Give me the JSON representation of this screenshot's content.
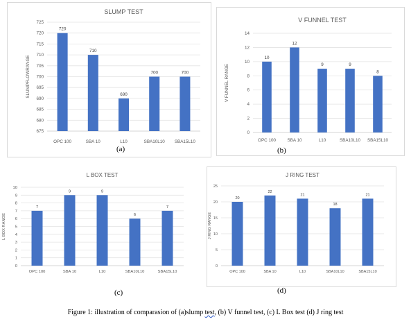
{
  "charts": [
    {
      "type": "bar",
      "title": "SLUMP TEST",
      "ylabel": "SLUMPFLOWRANGE",
      "xlabel": "",
      "categories": [
        "OPC 100",
        "SBA 10",
        "L10",
        "SBA10L10",
        "SBA15L10"
      ],
      "values": [
        720,
        710,
        690,
        700,
        700
      ],
      "ylim": [
        675,
        725
      ],
      "yticks": [
        675,
        680,
        685,
        690,
        695,
        700,
        705,
        710,
        715,
        720,
        725
      ],
      "grid": true,
      "color": "#4472c4",
      "caption": "(a)"
    },
    {
      "type": "bar",
      "title": "V FUNNEL TEST",
      "ylabel": "V FUNNEL RANGE",
      "xlabel": "",
      "categories": [
        "OPC 100",
        "SBA 10",
        "L10",
        "SBA10L10",
        "SBA15L10"
      ],
      "values": [
        10,
        12,
        9,
        9,
        8
      ],
      "ylim": [
        0,
        14
      ],
      "yticks": [
        0,
        2,
        4,
        6,
        8,
        10,
        12,
        14
      ],
      "grid": true,
      "color": "#4472c4",
      "caption": "(b)"
    },
    {
      "type": "bar",
      "title": "L BOX TEST",
      "ylabel": "L BOX RANGE",
      "xlabel": "",
      "categories": [
        "OPC 100",
        "SBA 10",
        "L10",
        "SBA10L10",
        "SBA15L10"
      ],
      "values": [
        7,
        9,
        9,
        6,
        7
      ],
      "ylim": [
        0,
        10
      ],
      "yticks": [
        0,
        1,
        2,
        3,
        4,
        5,
        6,
        7,
        8,
        9,
        10
      ],
      "grid": true,
      "color": "#4472c4",
      "caption": "(c)"
    },
    {
      "type": "bar",
      "title": "J RING TEST",
      "ylabel": "J RING RANGE",
      "xlabel": "",
      "categories": [
        "OPC 100",
        "SBA 10",
        "L10",
        "SBA10L10",
        "SBA15L10"
      ],
      "values": [
        20,
        22,
        21,
        18,
        21
      ],
      "ylim": [
        0,
        25
      ],
      "yticks": [
        0,
        5,
        10,
        15,
        20,
        25
      ],
      "grid": true,
      "color": "#4472c4",
      "caption": "(d)"
    }
  ],
  "figure_caption": {
    "before": "Figure 1: illustration of  comparasion of (a)slump ",
    "squiggled": "test",
    "after": ", (b) V funnel test, (c) L Box test (d)  J ring test"
  }
}
